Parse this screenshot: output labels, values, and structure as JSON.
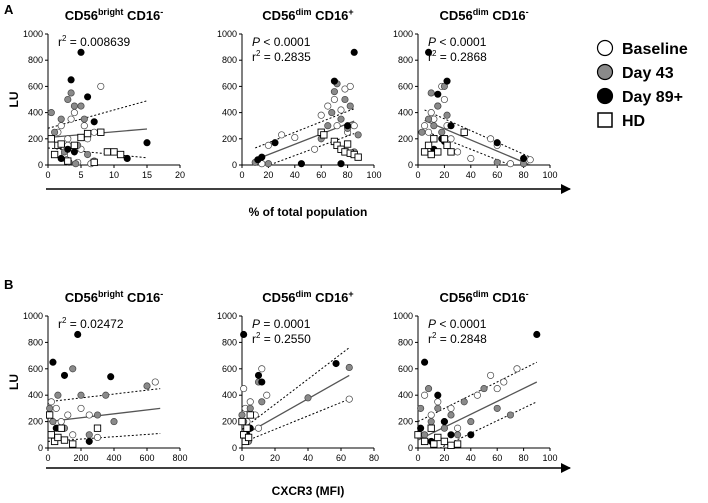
{
  "panels": [
    {
      "label": "A",
      "shared_xlabel": "% of total population"
    },
    {
      "label": "B",
      "shared_xlabel": "CXCR3 (MFI)"
    }
  ],
  "legend": [
    {
      "label": "Baseline",
      "marker": "circle",
      "fill": "#ffffff"
    },
    {
      "label": "Day 43",
      "marker": "circle",
      "fill": "#8a8a8a"
    },
    {
      "label": "Day 89+",
      "marker": "circle",
      "fill": "#000000"
    },
    {
      "label": "HD",
      "marker": "square",
      "fill": "#ffffff"
    }
  ],
  "colors": {
    "baseline": "#ffffff",
    "day43": "#8a8a8a",
    "day89": "#000000",
    "hd": "#ffffff",
    "regression": "#555555"
  },
  "chart_data": [
    {
      "type": "scatter",
      "panel": "A",
      "title_main": "CD56",
      "title_sup": "bright",
      "title_rest": " CD16",
      "title_sign": "-",
      "ylabel": "LU",
      "xlim": [
        0,
        20
      ],
      "ylim": [
        0,
        1000
      ],
      "xticks": [
        0,
        5,
        10,
        15,
        20
      ],
      "yticks": [
        0,
        200,
        400,
        600,
        800,
        1000
      ],
      "stats": [
        {
          "prefix": "r",
          "sup": "2",
          "value": " = 0.008639"
        }
      ],
      "regression": {
        "x": [
          0,
          15
        ],
        "y": [
          210,
          275
        ],
        "upper": [
          280,
          490
        ],
        "lower": [
          130,
          55
        ]
      },
      "series": [
        {
          "name": "Baseline",
          "x": [
            1.5,
            2,
            2.5,
            3,
            3.5,
            4,
            5,
            5.5,
            6,
            7,
            8,
            3,
            4.5,
            2.8,
            6.5
          ],
          "y": [
            250,
            300,
            80,
            200,
            350,
            400,
            120,
            300,
            200,
            250,
            600,
            150,
            20,
            40,
            10
          ]
        },
        {
          "name": "Day 43",
          "x": [
            0.5,
            1,
            2,
            3,
            3.5,
            4,
            4.5,
            5,
            5.5,
            6,
            7,
            2.5,
            3.2,
            4.2
          ],
          "y": [
            400,
            250,
            350,
            500,
            550,
            450,
            150,
            450,
            350,
            80,
            30,
            100,
            20,
            10
          ]
        },
        {
          "name": "Day 89+",
          "x": [
            2,
            3,
            3.5,
            4,
            5,
            6,
            7,
            8,
            12,
            15
          ],
          "y": [
            50,
            120,
            650,
            100,
            860,
            520,
            330,
            250,
            50,
            170
          ]
        },
        {
          "name": "HD",
          "x": [
            0.5,
            1,
            1.5,
            2,
            4,
            5,
            6,
            8,
            9,
            10,
            11,
            3,
            7
          ],
          "y": [
            200,
            80,
            150,
            160,
            150,
            210,
            240,
            250,
            100,
            100,
            80,
            30,
            20
          ]
        }
      ]
    },
    {
      "type": "scatter",
      "panel": "A",
      "title_main": "CD56",
      "title_sup": "dim",
      "title_rest": " CD16",
      "title_sign": "+",
      "ylabel": "",
      "xlim": [
        0,
        100
      ],
      "ylim": [
        0,
        1000
      ],
      "xticks": [
        0,
        20,
        40,
        60,
        80,
        100
      ],
      "yticks": [
        0,
        200,
        400,
        600,
        800,
        1000
      ],
      "stats": [
        {
          "prefix": "P",
          "sup": "",
          "value": " < 0.0001"
        },
        {
          "prefix": "r",
          "sup": "2",
          "value": " = 0.2835"
        }
      ],
      "regression": {
        "x": [
          10,
          85
        ],
        "y": [
          40,
          335
        ],
        "upper": [
          130,
          430
        ],
        "lower": [
          -40,
          240
        ]
      },
      "series": [
        {
          "name": "Baseline",
          "x": [
            15,
            20,
            30,
            40,
            55,
            60,
            65,
            70,
            72,
            75,
            78,
            80,
            82,
            85
          ],
          "y": [
            10,
            150,
            230,
            210,
            120,
            380,
            450,
            500,
            300,
            420,
            580,
            250,
            600,
            300
          ]
        },
        {
          "name": "Day 43",
          "x": [
            10,
            20,
            60,
            65,
            68,
            70,
            72,
            75,
            78,
            80,
            82,
            85,
            88
          ],
          "y": [
            20,
            10,
            200,
            300,
            400,
            560,
            620,
            350,
            500,
            280,
            450,
            100,
            230
          ]
        },
        {
          "name": "Day 89+",
          "x": [
            12,
            15,
            25,
            45,
            70,
            75,
            80,
            85
          ],
          "y": [
            40,
            60,
            170,
            10,
            640,
            10,
            300,
            860
          ]
        },
        {
          "name": "HD",
          "x": [
            60,
            62,
            70,
            72,
            75,
            78,
            80,
            82,
            85,
            88
          ],
          "y": [
            250,
            230,
            180,
            150,
            120,
            100,
            160,
            90,
            80,
            60
          ]
        }
      ]
    },
    {
      "type": "scatter",
      "panel": "A",
      "title_main": "CD56",
      "title_sup": "dim",
      "title_rest": " CD16",
      "title_sign": "-",
      "ylabel": "",
      "xlim": [
        0,
        100
      ],
      "ylim": [
        0,
        1000
      ],
      "xticks": [
        0,
        20,
        40,
        60,
        80,
        100
      ],
      "yticks": [
        0,
        200,
        400,
        600,
        800,
        1000
      ],
      "stats": [
        {
          "prefix": "P",
          "sup": "",
          "value": " < 0.0001"
        },
        {
          "prefix": "r",
          "sup": "2",
          "value": " = 0.2868"
        }
      ],
      "regression": {
        "x": [
          5,
          85
        ],
        "y": [
          340,
          0
        ],
        "upper": [
          420,
          60
        ],
        "lower": [
          260,
          -60
        ]
      },
      "series": [
        {
          "name": "Baseline",
          "x": [
            5,
            8,
            10,
            12,
            15,
            18,
            20,
            22,
            25,
            30,
            35,
            40,
            55,
            60,
            70,
            85
          ],
          "y": [
            300,
            250,
            400,
            350,
            450,
            600,
            500,
            300,
            200,
            100,
            250,
            50,
            200,
            150,
            10,
            40
          ]
        },
        {
          "name": "Day 43",
          "x": [
            3,
            5,
            8,
            10,
            12,
            15,
            18,
            20,
            22,
            25,
            60,
            80
          ],
          "y": [
            250,
            100,
            350,
            550,
            300,
            450,
            250,
            600,
            380,
            100,
            20,
            10
          ]
        },
        {
          "name": "Day 89+",
          "x": [
            8,
            12,
            15,
            18,
            20,
            22,
            25,
            60,
            80
          ],
          "y": [
            860,
            120,
            540,
            200,
            180,
            640,
            300,
            170,
            50
          ]
        },
        {
          "name": "HD",
          "x": [
            5,
            8,
            10,
            12,
            15,
            20,
            22,
            25,
            35
          ],
          "y": [
            100,
            150,
            80,
            200,
            100,
            200,
            150,
            100,
            250
          ]
        }
      ]
    },
    {
      "type": "scatter",
      "panel": "B",
      "title_main": "CD56",
      "title_sup": "bright",
      "title_rest": " CD16",
      "title_sign": "-",
      "ylabel": "LU",
      "xlim": [
        0,
        800
      ],
      "ylim": [
        0,
        1000
      ],
      "xticks": [
        0,
        200,
        400,
        600,
        800
      ],
      "yticks": [
        0,
        200,
        400,
        600,
        800,
        1000
      ],
      "stats": [
        {
          "prefix": "r",
          "sup": "2",
          "value": " = 0.02472"
        }
      ],
      "regression": {
        "x": [
          0,
          680
        ],
        "y": [
          200,
          300
        ],
        "upper": [
          350,
          450
        ],
        "lower": [
          50,
          110
        ]
      },
      "series": [
        {
          "name": "Baseline",
          "x": [
            20,
            50,
            80,
            120,
            150,
            200,
            250,
            300,
            650
          ],
          "y": [
            350,
            300,
            200,
            250,
            100,
            300,
            250,
            80,
            500
          ]
        },
        {
          "name": "Day 43",
          "x": [
            10,
            30,
            60,
            100,
            150,
            200,
            250,
            300,
            350,
            400,
            600
          ],
          "y": [
            300,
            200,
            400,
            150,
            600,
            400,
            100,
            250,
            400,
            200,
            470
          ]
        },
        {
          "name": "Day 89+",
          "x": [
            30,
            50,
            100,
            180,
            250,
            380
          ],
          "y": [
            650,
            150,
            550,
            860,
            50,
            540
          ]
        },
        {
          "name": "HD",
          "x": [
            10,
            20,
            40,
            60,
            80,
            100,
            150,
            300
          ],
          "y": [
            250,
            100,
            50,
            80,
            150,
            60,
            30,
            150
          ]
        }
      ]
    },
    {
      "type": "scatter",
      "panel": "B",
      "title_main": "CD56",
      "title_sup": "dim",
      "title_rest": " CD16",
      "title_sign": "+",
      "ylabel": "",
      "xlim": [
        0,
        80
      ],
      "ylim": [
        0,
        1000
      ],
      "xticks": [
        0,
        20,
        40,
        60,
        80
      ],
      "yticks": [
        0,
        200,
        400,
        600,
        800,
        1000
      ],
      "stats": [
        {
          "prefix": "P",
          "sup": "",
          "value": " = 0.0001"
        },
        {
          "prefix": "r",
          "sup": "2",
          "value": " = 0.2550"
        }
      ],
      "regression": {
        "x": [
          0,
          65
        ],
        "y": [
          90,
          550
        ],
        "upper": [
          140,
          760
        ],
        "lower": [
          40,
          370
        ]
      },
      "series": [
        {
          "name": "Baseline",
          "x": [
            1,
            2,
            3,
            5,
            8,
            10,
            12,
            15,
            65
          ],
          "y": [
            450,
            300,
            200,
            350,
            250,
            150,
            600,
            400,
            370
          ]
        },
        {
          "name": "Day 43",
          "x": [
            0,
            1,
            2,
            3,
            4,
            5,
            10,
            12,
            40,
            65
          ],
          "y": [
            250,
            200,
            100,
            150,
            50,
            300,
            500,
            350,
            380,
            610
          ]
        },
        {
          "name": "Day 89+",
          "x": [
            1,
            2,
            3,
            5,
            10,
            12,
            57
          ],
          "y": [
            860,
            50,
            100,
            150,
            550,
            500,
            640
          ]
        },
        {
          "name": "HD",
          "x": [
            0,
            1,
            2,
            3,
            4,
            5
          ],
          "y": [
            200,
            100,
            50,
            150,
            80,
            250
          ]
        }
      ]
    },
    {
      "type": "scatter",
      "panel": "B",
      "title_main": "CD56",
      "title_sup": "dim",
      "title_rest": " CD16",
      "title_sign": "-",
      "ylabel": "",
      "xlim": [
        0,
        100
      ],
      "ylim": [
        0,
        1000
      ],
      "xticks": [
        0,
        20,
        40,
        60,
        80,
        100
      ],
      "yticks": [
        0,
        200,
        400,
        600,
        800,
        1000
      ],
      "stats": [
        {
          "prefix": "P",
          "sup": "",
          "value": " < 0.0001"
        },
        {
          "prefix": "r",
          "sup": "2",
          "value": " = 0.2848"
        }
      ],
      "regression": {
        "x": [
          0,
          90
        ],
        "y": [
          60,
          500
        ],
        "upper": [
          200,
          650
        ],
        "lower": [
          -80,
          350
        ]
      },
      "series": [
        {
          "name": "Baseline",
          "x": [
            5,
            10,
            15,
            20,
            25,
            30,
            45,
            55,
            60,
            65,
            75
          ],
          "y": [
            400,
            250,
            350,
            200,
            300,
            150,
            400,
            550,
            450,
            500,
            600
          ]
        },
        {
          "name": "Day 43",
          "x": [
            2,
            5,
            8,
            10,
            15,
            20,
            25,
            30,
            35,
            40,
            50,
            60,
            70
          ],
          "y": [
            300,
            100,
            450,
            200,
            300,
            150,
            250,
            100,
            350,
            200,
            450,
            300,
            250
          ]
        },
        {
          "name": "Day 89+",
          "x": [
            2,
            5,
            10,
            15,
            20,
            25,
            40,
            90
          ],
          "y": [
            150,
            650,
            50,
            400,
            200,
            100,
            100,
            860
          ]
        },
        {
          "name": "HD",
          "x": [
            0,
            5,
            10,
            12,
            15,
            20,
            25,
            30
          ],
          "y": [
            100,
            50,
            150,
            30,
            80,
            50,
            20,
            30
          ]
        }
      ]
    }
  ]
}
